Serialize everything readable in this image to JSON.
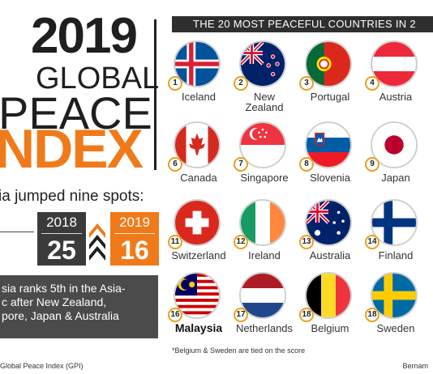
{
  "title": {
    "year": "2019",
    "line1": "GLOBAL",
    "line2": "PEACE",
    "line3": "NDEX"
  },
  "jump": {
    "text": "ia jumped nine spots:",
    "from_year": "2018",
    "from_rank": "25",
    "to_year": "2019",
    "to_rank": "16"
  },
  "asia_note": {
    "line1": "sia ranks 5th in the Asia-",
    "line2": "c after New Zealand,",
    "line3": "pore, Japan & Australia"
  },
  "header": "THE 20 MOST PEACEFUL COUNTRIES IN 2",
  "countries": [
    {
      "rank": "1",
      "name": "Iceland"
    },
    {
      "rank": "2",
      "name": "New Zealand"
    },
    {
      "rank": "3",
      "name": "Portugal"
    },
    {
      "rank": "4",
      "name": "Austria"
    },
    {
      "rank": "6",
      "name": "Canada"
    },
    {
      "rank": "7",
      "name": "Singapore"
    },
    {
      "rank": "8",
      "name": "Slovenia"
    },
    {
      "rank": "9",
      "name": "Japan"
    },
    {
      "rank": "11",
      "name": "Switzerland"
    },
    {
      "rank": "12",
      "name": "Ireland"
    },
    {
      "rank": "13",
      "name": "Australia"
    },
    {
      "rank": "14",
      "name": "Finland"
    },
    {
      "rank": "16",
      "name": "Malaysia"
    },
    {
      "rank": "17",
      "name": "Netherlands"
    },
    {
      "rank": "18",
      "name": "Belgium"
    },
    {
      "rank": "18",
      "name": "Sweden"
    }
  ],
  "footnote": "*Belgium & Sweden are tied on the score",
  "source": "Global Peace Index (GPI)",
  "credit": "Bernam",
  "colors": {
    "accent": "#f07a1a",
    "dark": "#2f2f2f",
    "rank_ring": "#e8a020"
  }
}
